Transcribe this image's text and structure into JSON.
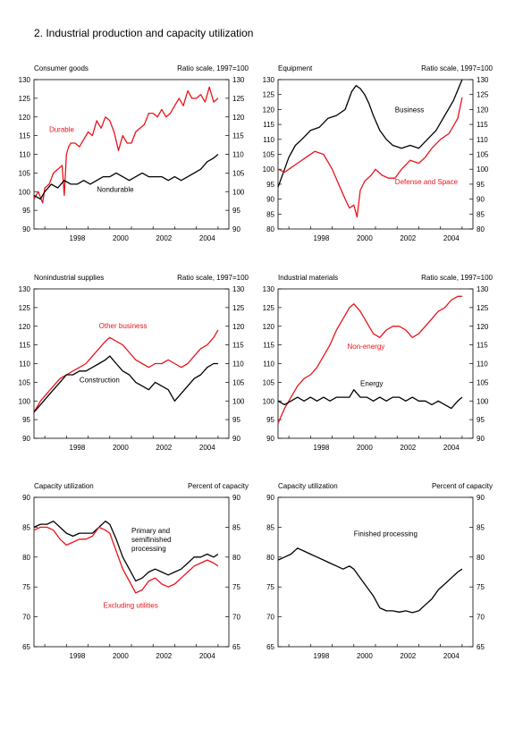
{
  "page": {
    "title": "2.  Industrial production and capacity utilization"
  },
  "colors": {
    "red": "#e8141c",
    "black": "#000000"
  },
  "chart_data": [
    {
      "type": "line",
      "title": "Consumer goods",
      "units": "Ratio scale, 1997=100",
      "ylim": [
        90,
        130
      ],
      "yticks": [
        90,
        95,
        100,
        105,
        110,
        115,
        120,
        125,
        130
      ],
      "xlim": [
        1996.5,
        2005.5
      ],
      "xticks": [
        1998,
        2000,
        2002,
        2004
      ],
      "series": [
        {
          "name": "Durable",
          "color": "#e8141c",
          "x": [
            1996.5,
            1996.7,
            1996.9,
            1997.0,
            1997.2,
            1997.4,
            1997.6,
            1997.8,
            1997.9,
            1998.0,
            1998.1,
            1998.2,
            1998.4,
            1998.6,
            1998.8,
            1999.0,
            1999.2,
            1999.4,
            1999.6,
            1999.8,
            2000.0,
            2000.2,
            2000.4,
            2000.6,
            2000.8,
            2001.0,
            2001.2,
            2001.4,
            2001.6,
            2001.8,
            2002.0,
            2002.2,
            2002.4,
            2002.6,
            2002.8,
            2003.0,
            2003.2,
            2003.4,
            2003.6,
            2003.8,
            2004.0,
            2004.2,
            2004.4,
            2004.6,
            2004.8,
            2005.0
          ],
          "values": [
            98,
            100,
            97,
            101,
            102,
            105,
            106,
            107,
            99,
            110,
            112,
            113,
            113,
            112,
            114,
            116,
            115,
            119,
            117,
            120,
            119,
            116,
            111,
            115,
            113,
            113,
            116,
            117,
            118,
            121,
            121,
            120,
            122,
            120,
            121,
            123,
            125,
            123,
            127,
            125,
            125,
            126,
            124,
            128,
            124,
            125
          ]
        },
        {
          "name": "Nondurable",
          "color": "#000000",
          "x": [
            1996.5,
            1996.8,
            1997.0,
            1997.3,
            1997.6,
            1997.9,
            1998.2,
            1998.5,
            1998.8,
            1999.1,
            1999.4,
            1999.7,
            2000.0,
            2000.3,
            2000.6,
            2000.9,
            2001.2,
            2001.5,
            2001.8,
            2002.1,
            2002.4,
            2002.7,
            2003.0,
            2003.3,
            2003.6,
            2003.9,
            2004.2,
            2004.5,
            2004.8,
            2005.0
          ],
          "values": [
            99,
            98,
            100,
            102,
            101,
            103,
            102,
            102,
            103,
            102,
            103,
            104,
            104,
            105,
            104,
            103,
            104,
            105,
            104,
            104,
            104,
            103,
            104,
            103,
            104,
            105,
            106,
            108,
            109,
            110
          ]
        }
      ],
      "labels": [
        {
          "text": "Durable",
          "color": "#e8141c",
          "at": [
            1997.2,
            116
          ]
        },
        {
          "text": "Nondurable",
          "color": "#000000",
          "at": [
            1999.4,
            100
          ]
        }
      ]
    },
    {
      "type": "line",
      "title": "Equipment",
      "units": "Ratio scale, 1997=100",
      "ylim": [
        80,
        130
      ],
      "yticks": [
        80,
        85,
        90,
        95,
        100,
        105,
        110,
        115,
        120,
        125,
        130
      ],
      "xlim": [
        1996.5,
        2005.5
      ],
      "xticks": [
        1998,
        2000,
        2002,
        2004
      ],
      "series": [
        {
          "name": "Business",
          "color": "#000000",
          "x": [
            1996.5,
            1996.8,
            1997.0,
            1997.3,
            1997.6,
            1998.0,
            1998.4,
            1998.8,
            1999.2,
            1999.6,
            1999.9,
            2000.1,
            2000.3,
            2000.5,
            2000.7,
            2000.9,
            2001.2,
            2001.5,
            2001.8,
            2002.2,
            2002.6,
            2003.0,
            2003.4,
            2003.8,
            2004.2,
            2004.6,
            2005.0
          ],
          "values": [
            94,
            100,
            104,
            108,
            110,
            113,
            114,
            117,
            118,
            120,
            126,
            128,
            127,
            125,
            122,
            118,
            113,
            110,
            108,
            107,
            108,
            107,
            110,
            113,
            118,
            123,
            130
          ]
        },
        {
          "name": "Defense and Space",
          "color": "#e8141c",
          "x": [
            1996.5,
            1996.8,
            1997.0,
            1997.4,
            1997.8,
            1998.2,
            1998.6,
            1999.0,
            1999.3,
            1999.6,
            1999.8,
            2000.0,
            2000.15,
            2000.3,
            2000.5,
            2000.8,
            2001.0,
            2001.3,
            2001.6,
            2001.9,
            2002.2,
            2002.6,
            2003.0,
            2003.3,
            2003.6,
            2004.0,
            2004.4,
            2004.8,
            2005.0
          ],
          "values": [
            100,
            99,
            100,
            102,
            104,
            106,
            105,
            100,
            95,
            90,
            87,
            88,
            84,
            93,
            96,
            98,
            100,
            98,
            97,
            97,
            100,
            103,
            102,
            104,
            107,
            110,
            112,
            117,
            124
          ]
        }
      ],
      "labels": [
        {
          "text": "Business",
          "color": "#000000",
          "at": [
            2001.9,
            119
          ]
        },
        {
          "text": "Defense and Space",
          "color": "#e8141c",
          "at": [
            2001.9,
            95
          ]
        }
      ]
    },
    {
      "type": "line",
      "title": "Nonindustrial supplies",
      "units": "Ratio scale, 1997=100",
      "ylim": [
        90,
        130
      ],
      "yticks": [
        90,
        95,
        100,
        105,
        110,
        115,
        120,
        125,
        130
      ],
      "xlim": [
        1996.5,
        2005.5
      ],
      "xticks": [
        1998,
        2000,
        2002,
        2004
      ],
      "series": [
        {
          "name": "Other business",
          "color": "#e8141c",
          "x": [
            1996.5,
            1996.8,
            1997.1,
            1997.4,
            1997.7,
            1998.0,
            1998.3,
            1998.6,
            1998.9,
            1999.2,
            1999.5,
            1999.8,
            2000.0,
            2000.3,
            2000.6,
            2000.9,
            2001.2,
            2001.5,
            2001.8,
            2002.1,
            2002.4,
            2002.7,
            2003.0,
            2003.3,
            2003.6,
            2003.9,
            2004.2,
            2004.5,
            2004.8,
            2005.0
          ],
          "values": [
            97,
            100,
            102,
            104,
            106,
            107,
            108,
            109,
            110,
            112,
            114,
            116,
            117,
            116,
            115,
            113,
            111,
            110,
            109,
            110,
            110,
            111,
            110,
            109,
            110,
            112,
            114,
            115,
            117,
            119
          ]
        },
        {
          "name": "Construction",
          "color": "#000000",
          "x": [
            1996.5,
            1996.8,
            1997.1,
            1997.4,
            1997.7,
            1998.0,
            1998.3,
            1998.6,
            1998.9,
            1999.2,
            1999.5,
            1999.8,
            2000.0,
            2000.3,
            2000.6,
            2000.9,
            2001.2,
            2001.5,
            2001.8,
            2002.1,
            2002.4,
            2002.7,
            2003.0,
            2003.3,
            2003.6,
            2003.9,
            2004.2,
            2004.5,
            2004.8,
            2005.0
          ],
          "values": [
            97,
            99,
            101,
            103,
            105,
            107,
            107,
            108,
            108,
            109,
            110,
            111,
            112,
            110,
            108,
            107,
            105,
            104,
            103,
            105,
            104,
            103,
            100,
            102,
            104,
            106,
            107,
            109,
            110,
            110
          ]
        }
      ],
      "labels": [
        {
          "text": "Other business",
          "color": "#e8141c",
          "at": [
            1999.5,
            119.5
          ]
        },
        {
          "text": "Construction",
          "color": "#000000",
          "at": [
            1998.6,
            105
          ]
        }
      ]
    },
    {
      "type": "line",
      "title": "Industrial materials",
      "units": "Ratio scale, 1997=100",
      "ylim": [
        90,
        130
      ],
      "yticks": [
        90,
        95,
        100,
        105,
        110,
        115,
        120,
        125,
        130
      ],
      "xlim": [
        1996.5,
        2005.5
      ],
      "xticks": [
        1998,
        2000,
        2002,
        2004
      ],
      "series": [
        {
          "name": "Non-energy",
          "color": "#e8141c",
          "x": [
            1996.5,
            1996.8,
            1997.1,
            1997.4,
            1997.7,
            1998.0,
            1998.3,
            1998.6,
            1998.9,
            1999.2,
            1999.5,
            1999.8,
            2000.0,
            2000.3,
            2000.6,
            2000.9,
            2001.2,
            2001.5,
            2001.8,
            2002.1,
            2002.4,
            2002.7,
            2003.0,
            2003.3,
            2003.6,
            2003.9,
            2004.2,
            2004.5,
            2004.8,
            2005.0
          ],
          "values": [
            94,
            98,
            101,
            104,
            106,
            107,
            109,
            112,
            115,
            119,
            122,
            125,
            126,
            124,
            121,
            118,
            117,
            119,
            120,
            120,
            119,
            117,
            118,
            120,
            122,
            124,
            125,
            127,
            128,
            128
          ]
        },
        {
          "name": "Energy",
          "color": "#000000",
          "x": [
            1996.5,
            1996.8,
            1997.1,
            1997.4,
            1997.7,
            1998.0,
            1998.3,
            1998.6,
            1998.9,
            1999.2,
            1999.5,
            1999.8,
            2000.0,
            2000.3,
            2000.6,
            2000.9,
            2001.2,
            2001.5,
            2001.8,
            2002.1,
            2002.4,
            2002.7,
            2003.0,
            2003.3,
            2003.6,
            2003.9,
            2004.2,
            2004.5,
            2004.8,
            2005.0
          ],
          "values": [
            100,
            99,
            100,
            101,
            100,
            101,
            100,
            101,
            100,
            101,
            101,
            101,
            103,
            101,
            101,
            100,
            101,
            100,
            101,
            101,
            100,
            101,
            100,
            100,
            99,
            100,
            99,
            98,
            100,
            101
          ]
        }
      ],
      "labels": [
        {
          "text": "Non-energy",
          "color": "#e8141c",
          "at": [
            1999.7,
            114
          ]
        },
        {
          "text": "Energy",
          "color": "#000000",
          "at": [
            2000.3,
            104
          ]
        }
      ]
    },
    {
      "type": "line",
      "title": "Capacity utilization",
      "units": "Percent of capacity",
      "ylim": [
        65,
        90
      ],
      "yticks": [
        65,
        70,
        75,
        80,
        85,
        90
      ],
      "xlim": [
        1996.5,
        2005.5
      ],
      "xticks": [
        1998,
        2000,
        2002,
        2004
      ],
      "series": [
        {
          "name": "Primary and semifinished processing",
          "color": "#000000",
          "x": [
            1996.5,
            1996.8,
            1997.1,
            1997.4,
            1997.7,
            1998.0,
            1998.3,
            1998.6,
            1998.9,
            1999.2,
            1999.5,
            1999.8,
            2000.0,
            2000.3,
            2000.6,
            2000.9,
            2001.2,
            2001.5,
            2001.8,
            2002.1,
            2002.4,
            2002.7,
            2003.0,
            2003.3,
            2003.6,
            2003.9,
            2004.2,
            2004.5,
            2004.8,
            2005.0
          ],
          "values": [
            85,
            85.5,
            85.5,
            86,
            85,
            84,
            83.5,
            84,
            84,
            84,
            85,
            86,
            85.5,
            83,
            80,
            78,
            76,
            76.5,
            77.5,
            78,
            77.5,
            77,
            77.5,
            78,
            79,
            80,
            80,
            80.5,
            80,
            80.5
          ]
        },
        {
          "name": "Excluding utilities",
          "color": "#e8141c",
          "x": [
            1996.5,
            1996.8,
            1997.1,
            1997.4,
            1997.7,
            1998.0,
            1998.3,
            1998.6,
            1998.9,
            1999.2,
            1999.5,
            1999.8,
            2000.0,
            2000.3,
            2000.6,
            2000.9,
            2001.2,
            2001.5,
            2001.8,
            2002.1,
            2002.4,
            2002.7,
            2003.0,
            2003.3,
            2003.6,
            2003.9,
            2004.2,
            2004.5,
            2004.8,
            2005.0
          ],
          "values": [
            84.5,
            85,
            85,
            84.5,
            83,
            82,
            82.5,
            83,
            83,
            83.5,
            85,
            84.5,
            84,
            81,
            78,
            76,
            74,
            74.5,
            76,
            76.5,
            75.5,
            75,
            75.5,
            76.5,
            77.5,
            78.5,
            79,
            79.5,
            79,
            78.5
          ]
        }
      ],
      "labels": [
        {
          "text": "Primary and",
          "color": "#000000",
          "at": [
            2001.0,
            84
          ]
        },
        {
          "text": "semifinished",
          "color": "#000000",
          "at": [
            2001.0,
            82.5
          ]
        },
        {
          "text": "processing",
          "color": "#000000",
          "at": [
            2001.0,
            81
          ]
        },
        {
          "text": "Excluding utilities",
          "color": "#e8141c",
          "at": [
            1999.7,
            71.5
          ]
        }
      ]
    },
    {
      "type": "line",
      "title": "Capacity utilization",
      "units": "Percent of capacity",
      "ylim": [
        65,
        90
      ],
      "yticks": [
        65,
        70,
        75,
        80,
        85,
        90
      ],
      "xlim": [
        1996.5,
        2005.5
      ],
      "xticks": [
        1998,
        2000,
        2002,
        2004
      ],
      "series": [
        {
          "name": "Finished processing",
          "color": "#000000",
          "x": [
            1996.5,
            1996.8,
            1997.1,
            1997.4,
            1997.7,
            1998.0,
            1998.3,
            1998.6,
            1998.9,
            1999.2,
            1999.5,
            1999.8,
            2000.0,
            2000.3,
            2000.6,
            2000.9,
            2001.2,
            2001.5,
            2001.8,
            2002.1,
            2002.4,
            2002.7,
            2003.0,
            2003.3,
            2003.6,
            2003.9,
            2004.2,
            2004.5,
            2004.8,
            2005.0
          ],
          "values": [
            79.5,
            80,
            80.5,
            81.5,
            81,
            80.5,
            80,
            79.5,
            79,
            78.5,
            78,
            78.5,
            78,
            76.5,
            75,
            73.5,
            71.5,
            71,
            71,
            70.8,
            71,
            70.7,
            71,
            72,
            73,
            74.5,
            75.5,
            76.5,
            77.5,
            78
          ]
        }
      ],
      "labels": [
        {
          "text": "Finished processing",
          "color": "#000000",
          "at": [
            2000.0,
            83.5
          ]
        }
      ]
    }
  ]
}
